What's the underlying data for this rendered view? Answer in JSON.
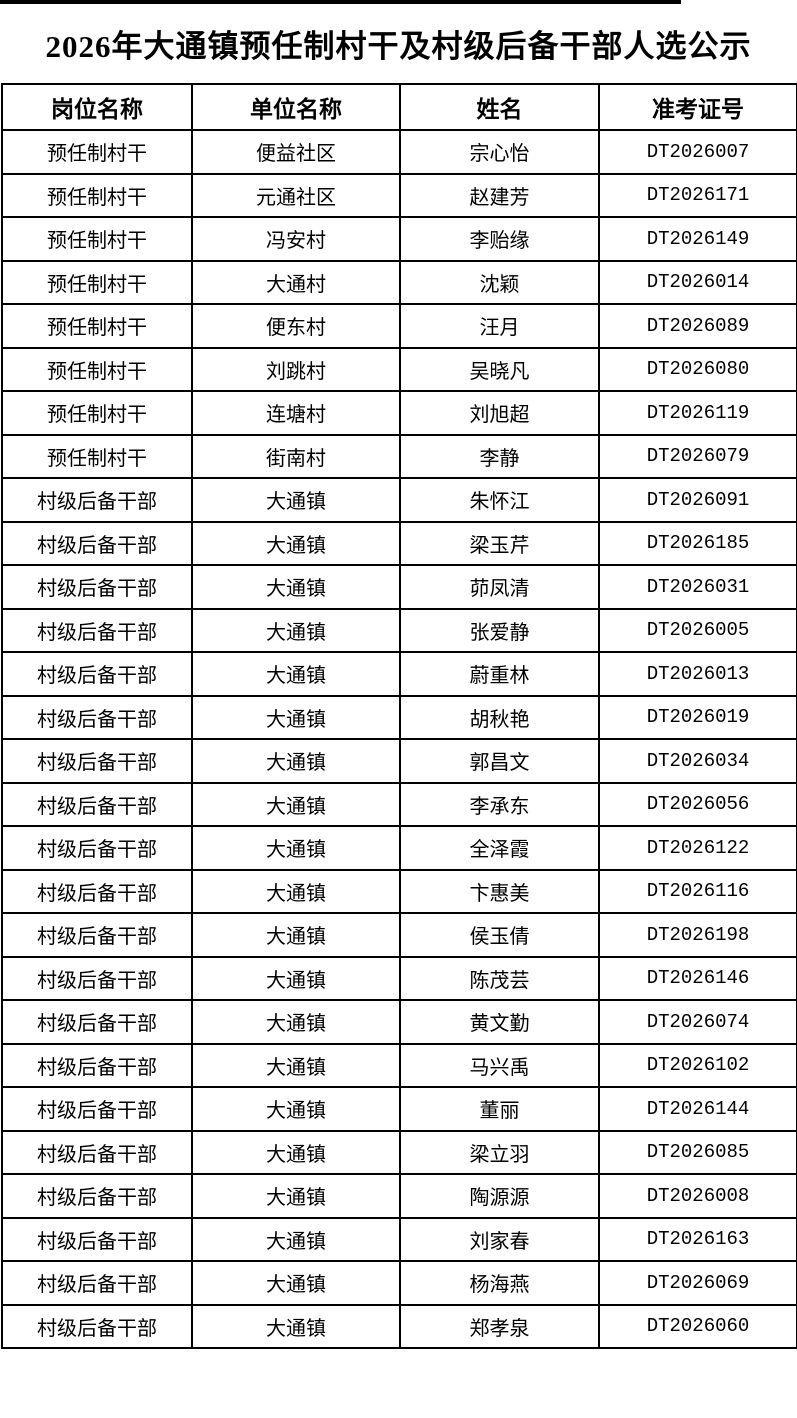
{
  "title": "2026年大通镇预任制村干及村级后备干部人选公示",
  "colors": {
    "background": "#ffffff",
    "text": "#000000",
    "border": "#000000"
  },
  "table": {
    "header_keys": [
      "position",
      "unit",
      "name",
      "ticket-number"
    ],
    "headers": [
      "岗位名称",
      "单位名称",
      "姓名",
      "准考证号"
    ],
    "rows": [
      [
        "预任制村干",
        "便益社区",
        "宗心怡",
        "DT2026007"
      ],
      [
        "预任制村干",
        "元通社区",
        "赵建芳",
        "DT2026171"
      ],
      [
        "预任制村干",
        "冯安村",
        "李贻缘",
        "DT2026149"
      ],
      [
        "预任制村干",
        "大通村",
        "沈颖",
        "DT2026014"
      ],
      [
        "预任制村干",
        "便东村",
        "汪月",
        "DT2026089"
      ],
      [
        "预任制村干",
        "刘跳村",
        "吴晓凡",
        "DT2026080"
      ],
      [
        "预任制村干",
        "连塘村",
        "刘旭超",
        "DT2026119"
      ],
      [
        "预任制村干",
        "街南村",
        "李静",
        "DT2026079"
      ],
      [
        "村级后备干部",
        "大通镇",
        "朱怀江",
        "DT2026091"
      ],
      [
        "村级后备干部",
        "大通镇",
        "梁玉芹",
        "DT2026185"
      ],
      [
        "村级后备干部",
        "大通镇",
        "茆凤清",
        "DT2026031"
      ],
      [
        "村级后备干部",
        "大通镇",
        "张爱静",
        "DT2026005"
      ],
      [
        "村级后备干部",
        "大通镇",
        "蔚重林",
        "DT2026013"
      ],
      [
        "村级后备干部",
        "大通镇",
        "胡秋艳",
        "DT2026019"
      ],
      [
        "村级后备干部",
        "大通镇",
        "郭昌文",
        "DT2026034"
      ],
      [
        "村级后备干部",
        "大通镇",
        "李承东",
        "DT2026056"
      ],
      [
        "村级后备干部",
        "大通镇",
        "全泽霞",
        "DT2026122"
      ],
      [
        "村级后备干部",
        "大通镇",
        "卞惠美",
        "DT2026116"
      ],
      [
        "村级后备干部",
        "大通镇",
        "侯玉倩",
        "DT2026198"
      ],
      [
        "村级后备干部",
        "大通镇",
        "陈茂芸",
        "DT2026146"
      ],
      [
        "村级后备干部",
        "大通镇",
        "黄文勤",
        "DT2026074"
      ],
      [
        "村级后备干部",
        "大通镇",
        "马兴禹",
        "DT2026102"
      ],
      [
        "村级后备干部",
        "大通镇",
        "董丽",
        "DT2026144"
      ],
      [
        "村级后备干部",
        "大通镇",
        "梁立羽",
        "DT2026085"
      ],
      [
        "村级后备干部",
        "大通镇",
        "陶源源",
        "DT2026008"
      ],
      [
        "村级后备干部",
        "大通镇",
        "刘家春",
        "DT2026163"
      ],
      [
        "村级后备干部",
        "大通镇",
        "杨海燕",
        "DT2026069"
      ],
      [
        "村级后备干部",
        "大通镇",
        "郑孝泉",
        "DT2026060"
      ]
    ]
  }
}
